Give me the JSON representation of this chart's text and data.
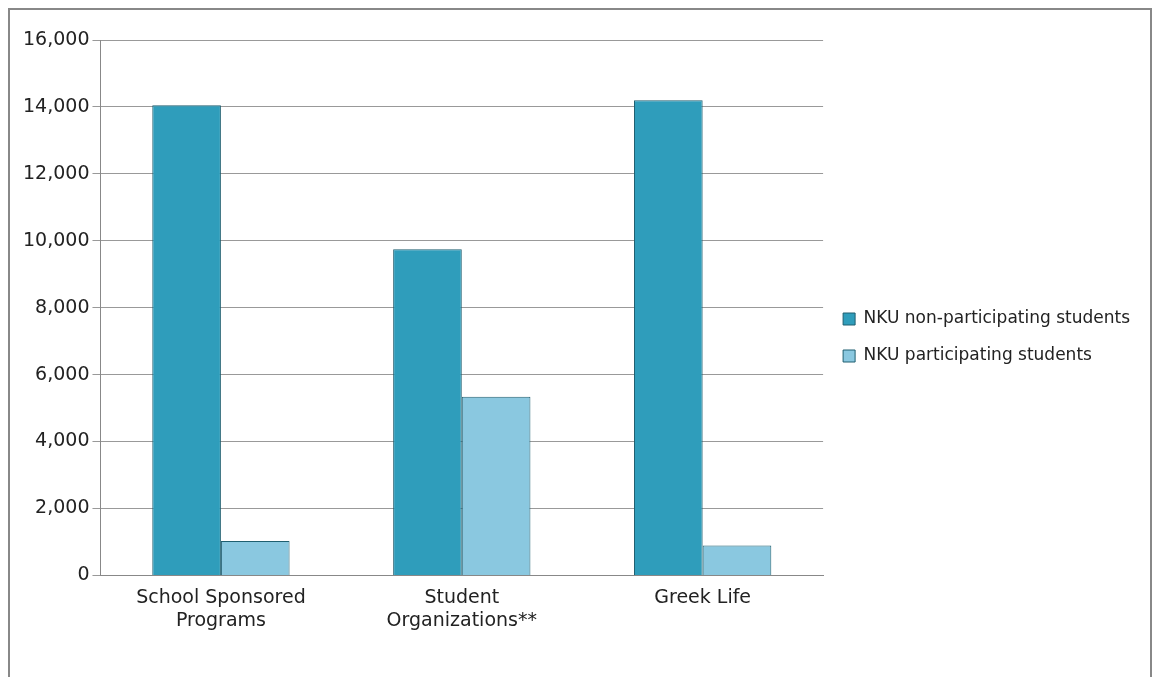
{
  "chart_data": {
    "type": "bar",
    "categories": [
      [
        "School Sponsored",
        "Programs"
      ],
      [
        "Student",
        "Organizations**"
      ],
      [
        "Greek Life"
      ]
    ],
    "series": [
      {
        "name": "NKU non-participating students",
        "color": "#2f9dbb",
        "values": [
          14050,
          9750,
          14200
        ]
      },
      {
        "name": "NKU participating students",
        "color": "#8ac8e0",
        "values": [
          1030,
          5340,
          890
        ]
      }
    ],
    "ylim": [
      0,
      16000
    ],
    "yticks": [
      {
        "value": 0,
        "label": "0"
      },
      {
        "value": 2000,
        "label": "2,000"
      },
      {
        "value": 4000,
        "label": "4,000"
      },
      {
        "value": 6000,
        "label": "6,000"
      },
      {
        "value": 8000,
        "label": "8,000"
      },
      {
        "value": 10000,
        "label": "10,000"
      },
      {
        "value": 12000,
        "label": "12,000"
      },
      {
        "value": 14000,
        "label": "14,000"
      },
      {
        "value": 16000,
        "label": "16,000"
      }
    ],
    "grid": "y",
    "legend": "right"
  }
}
